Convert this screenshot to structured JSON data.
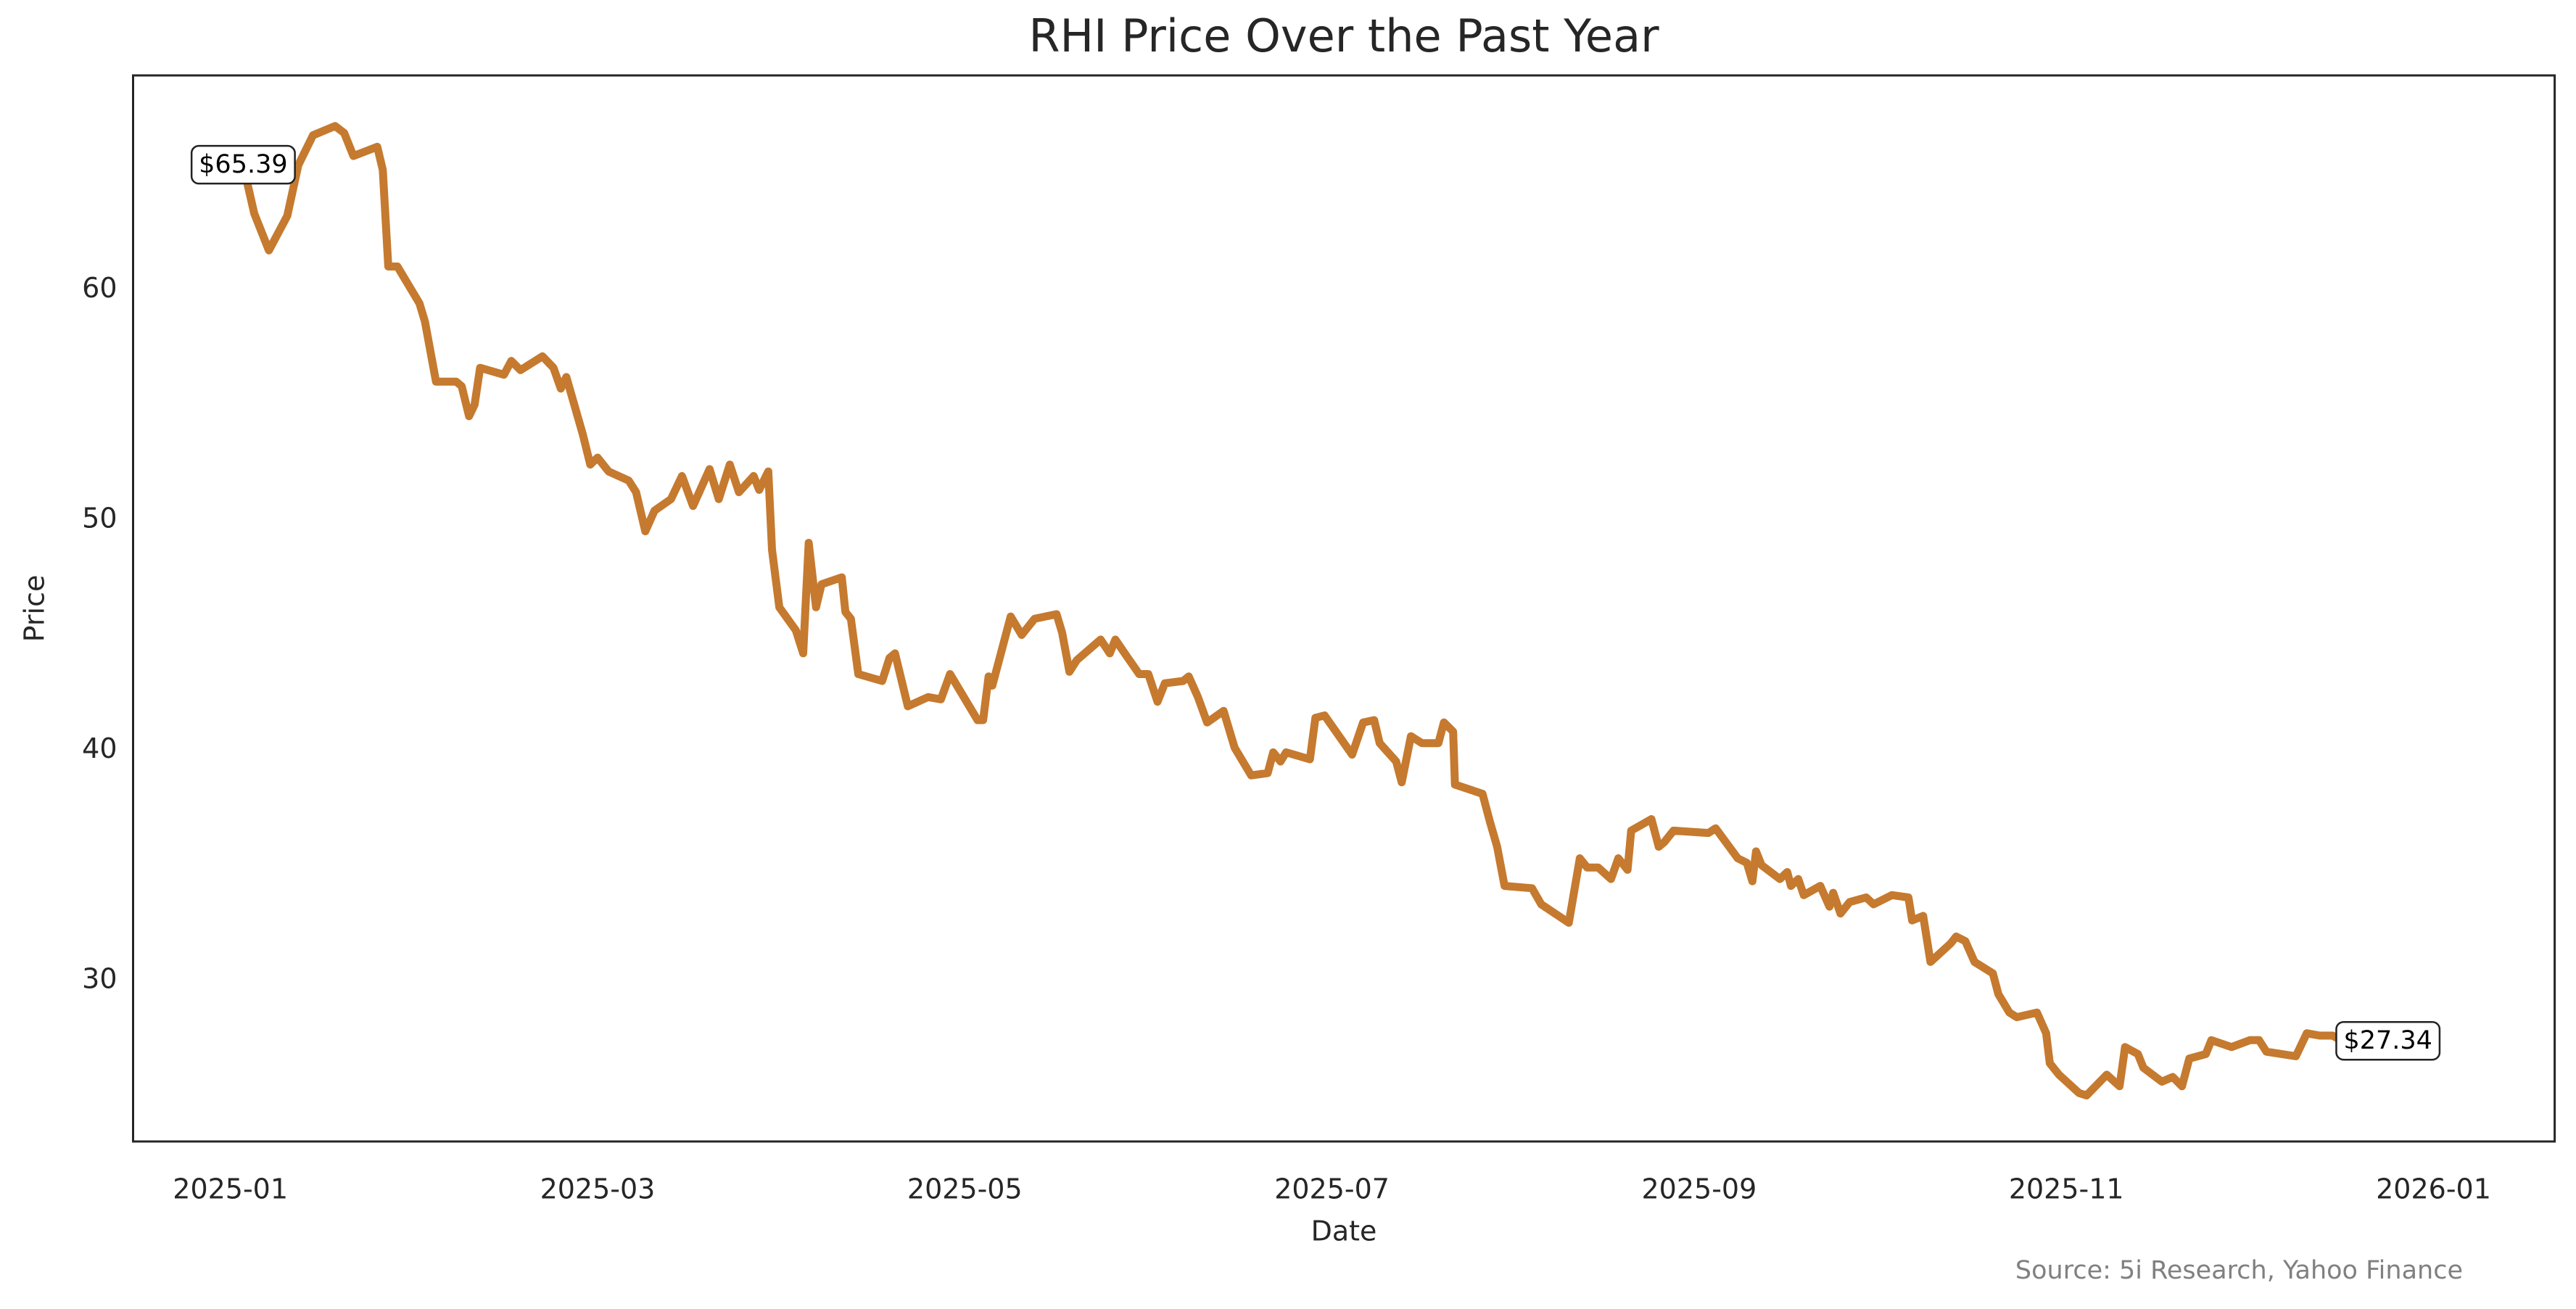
{
  "chart_data": {
    "type": "line",
    "title": "RHI Price Over the Past Year",
    "xlabel": "Date",
    "ylabel": "Price",
    "source": "Source: 5i Research, Yahoo Finance",
    "color": "#c57a2f",
    "grid": false,
    "xlim": [
      0.47,
      13.66
    ],
    "ylim": [
      23.0,
      69.3
    ],
    "xticks": [
      {
        "value": 1,
        "label": "2025-01"
      },
      {
        "value": 3,
        "label": "2025-03"
      },
      {
        "value": 5,
        "label": "2025-05"
      },
      {
        "value": 7,
        "label": "2025-07"
      },
      {
        "value": 9,
        "label": "2025-09"
      },
      {
        "value": 11,
        "label": "2025-11"
      },
      {
        "value": 13,
        "label": "2026-01"
      }
    ],
    "yticks": [
      30,
      40,
      50,
      60
    ],
    "annotations": [
      "$65.39",
      "$27.34"
    ],
    "x": [
      1.07,
      1.13,
      1.21,
      1.31,
      1.37,
      1.45,
      1.57,
      1.62,
      1.67,
      1.8,
      1.83,
      1.86,
      1.91,
      2.03,
      2.06,
      2.12,
      2.23,
      2.26,
      2.3,
      2.33,
      2.36,
      2.49,
      2.53,
      2.58,
      2.7,
      2.76,
      2.8,
      2.83,
      2.92,
      2.96,
      3.0,
      3.06,
      3.17,
      3.21,
      3.26,
      3.31,
      3.4,
      3.46,
      3.52,
      3.61,
      3.66,
      3.72,
      3.77,
      3.85,
      3.88,
      3.93,
      3.95,
      3.99,
      4.08,
      4.12,
      4.15,
      4.19,
      4.22,
      4.33,
      4.35,
      4.38,
      4.42,
      4.55,
      4.59,
      4.62,
      4.69,
      4.8,
      4.87,
      4.92,
      5.07,
      5.1,
      5.13,
      5.15,
      5.25,
      5.31,
      5.38,
      5.5,
      5.53,
      5.57,
      5.61,
      5.74,
      5.79,
      5.82,
      5.88,
      5.95,
      6.0,
      6.05,
      6.09,
      6.19,
      6.22,
      6.27,
      6.32,
      6.41,
      6.47,
      6.56,
      6.65,
      6.68,
      6.72,
      6.75,
      6.88,
      6.91,
      6.96,
      7.11,
      7.17,
      7.23,
      7.26,
      7.35,
      7.38,
      7.43,
      7.49,
      7.58,
      7.61,
      7.66,
      7.67,
      7.82,
      7.86,
      7.9,
      7.94,
      8.09,
      8.14,
      8.29,
      8.35,
      8.39,
      8.45,
      8.52,
      8.56,
      8.61,
      8.63,
      8.74,
      8.78,
      8.81,
      8.86,
      9.05,
      9.09,
      9.21,
      9.26,
      9.29,
      9.31,
      9.34,
      9.44,
      9.48,
      9.5,
      9.54,
      9.57,
      9.66,
      9.71,
      9.73,
      9.77,
      9.82,
      9.91,
      9.95,
      10.05,
      10.14,
      10.16,
      10.22,
      10.26,
      10.37,
      10.4,
      10.45,
      10.5,
      10.6,
      10.63,
      10.69,
      10.73,
      10.84,
      10.89,
      10.91,
      10.96,
      11.07,
      11.11,
      11.22,
      11.29,
      11.32,
      11.39,
      11.42,
      11.52,
      11.58,
      11.63,
      11.67,
      11.76,
      11.79,
      11.9,
      12.0,
      12.05,
      12.09,
      12.25,
      12.31,
      12.38,
      12.45,
      12.51
    ],
    "values": [
      65.39,
      63.3,
      61.7,
      63.2,
      65.4,
      66.7,
      67.1,
      66.8,
      65.8,
      66.2,
      65.2,
      61.0,
      61.0,
      59.4,
      58.6,
      56.0,
      56.0,
      55.8,
      54.5,
      55.0,
      56.6,
      56.3,
      56.9,
      56.5,
      57.1,
      56.6,
      55.7,
      56.2,
      53.7,
      52.4,
      52.7,
      52.1,
      51.7,
      51.2,
      49.5,
      50.4,
      50.9,
      51.9,
      50.6,
      52.2,
      50.9,
      52.4,
      51.2,
      51.9,
      51.3,
      52.1,
      48.7,
      46.2,
      45.2,
      44.2,
      49.0,
      46.2,
      47.2,
      47.5,
      46.0,
      45.7,
      43.3,
      43.0,
      44.0,
      44.2,
      41.9,
      42.3,
      42.2,
      43.3,
      41.3,
      41.3,
      43.2,
      42.8,
      45.8,
      45.0,
      45.7,
      45.9,
      45.1,
      43.4,
      43.9,
      44.8,
      44.2,
      44.8,
      44.1,
      43.3,
      43.3,
      42.1,
      42.9,
      43.0,
      43.2,
      42.3,
      41.2,
      41.7,
      40.1,
      38.9,
      39.0,
      39.9,
      39.5,
      39.9,
      39.6,
      41.4,
      41.5,
      39.8,
      41.2,
      41.3,
      40.3,
      39.5,
      38.6,
      40.6,
      40.3,
      40.3,
      41.2,
      40.8,
      38.5,
      38.1,
      36.9,
      35.8,
      34.1,
      34.0,
      33.3,
      32.5,
      35.3,
      34.9,
      34.9,
      34.4,
      35.3,
      34.8,
      36.5,
      37.0,
      35.8,
      36.0,
      36.5,
      36.4,
      36.6,
      35.3,
      35.1,
      34.3,
      35.6,
      35.0,
      34.4,
      34.7,
      34.1,
      34.4,
      33.7,
      34.1,
      33.2,
      33.8,
      32.9,
      33.4,
      33.6,
      33.3,
      33.7,
      33.6,
      32.6,
      32.8,
      30.8,
      31.6,
      31.9,
      31.7,
      30.8,
      30.3,
      29.4,
      28.6,
      28.4,
      28.6,
      27.7,
      26.4,
      25.9,
      25.1,
      25.0,
      25.9,
      25.4,
      27.1,
      26.8,
      26.2,
      25.6,
      25.8,
      25.4,
      26.6,
      26.8,
      27.4,
      27.1,
      27.4,
      27.4,
      26.9,
      26.7,
      27.7,
      27.6,
      27.6,
      27.34
    ]
  }
}
